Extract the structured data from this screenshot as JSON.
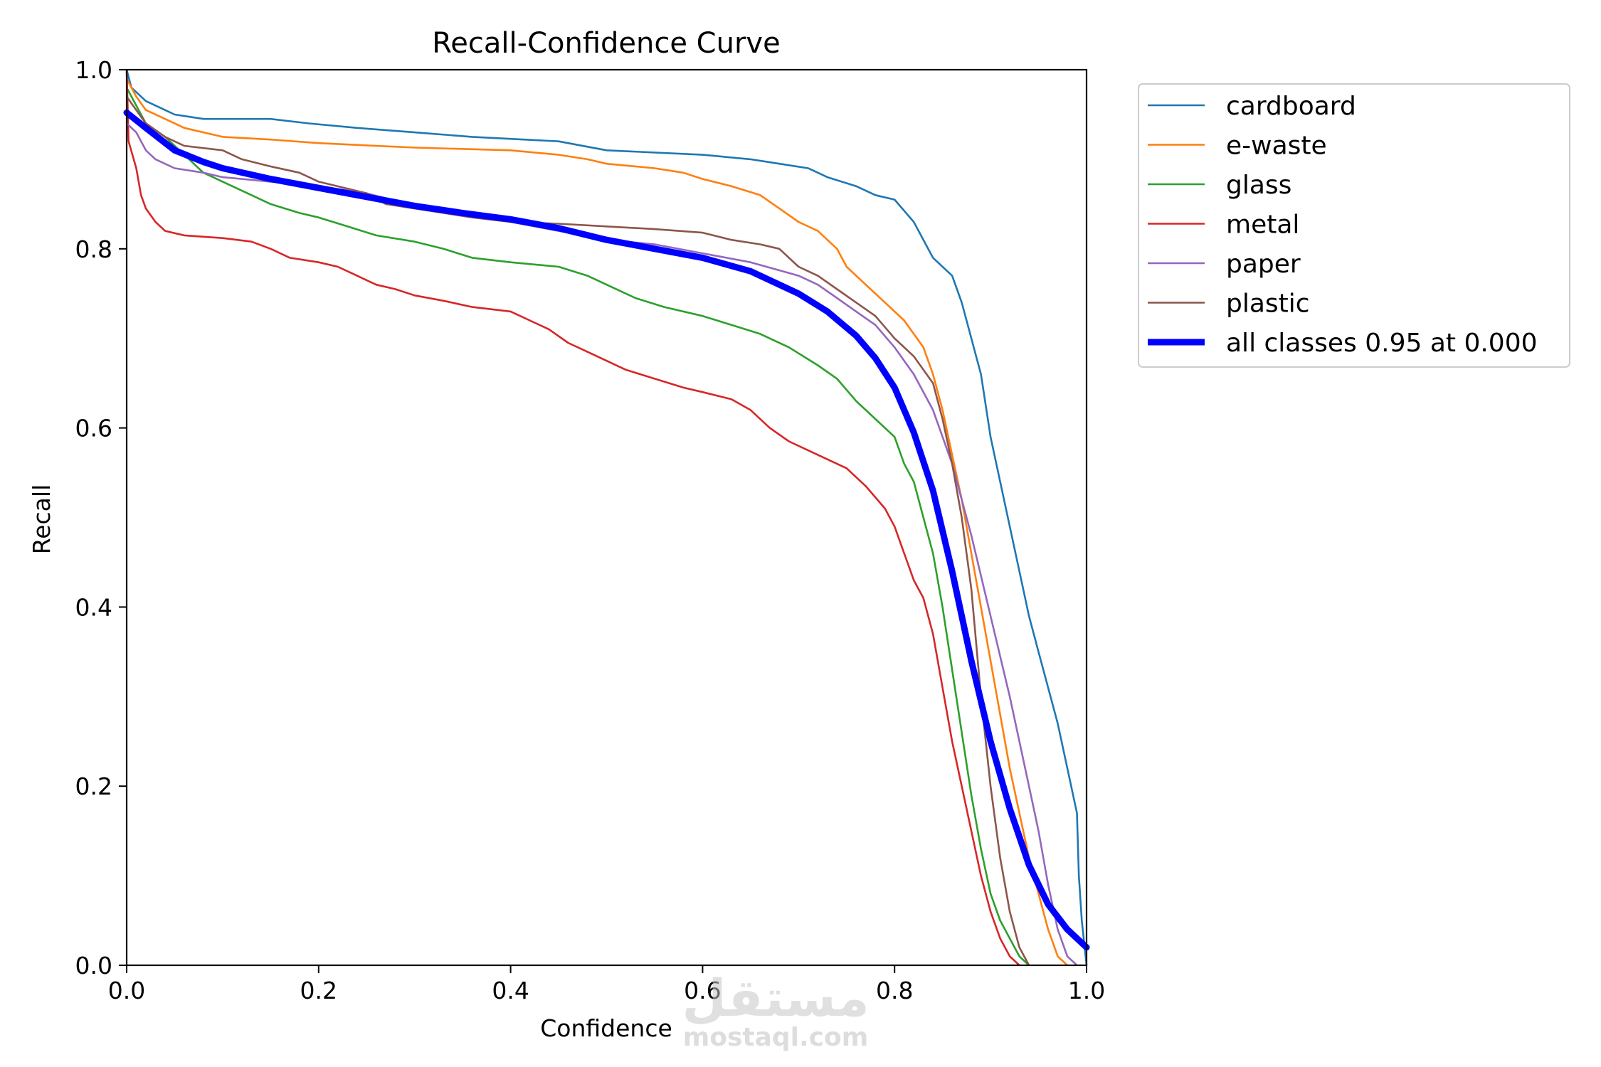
{
  "chart_data": {
    "type": "line",
    "title": "Recall-Confidence Curve",
    "xlabel": "Confidence",
    "ylabel": "Recall",
    "xlim": [
      0,
      1
    ],
    "ylim": [
      0,
      1
    ],
    "xticks": [
      0,
      0.2,
      0.4,
      0.6,
      0.8,
      1.0
    ],
    "xtick_labels": [
      "0.0",
      "0.2",
      "0.4",
      "0.6",
      "0.8",
      "1.0"
    ],
    "yticks": [
      0,
      0.2,
      0.4,
      0.6,
      0.8,
      1.0
    ],
    "ytick_labels": [
      "0.0",
      "0.2",
      "0.4",
      "0.6",
      "0.8",
      "1.0"
    ],
    "grid": false,
    "legend_position": "outside-right",
    "series": [
      {
        "name": "cardboard",
        "color": "#1f77b4",
        "width": "thin",
        "points": [
          [
            0,
            1.0
          ],
          [
            0.005,
            0.98
          ],
          [
            0.02,
            0.965
          ],
          [
            0.04,
            0.955
          ],
          [
            0.05,
            0.95
          ],
          [
            0.08,
            0.945
          ],
          [
            0.15,
            0.945
          ],
          [
            0.19,
            0.94
          ],
          [
            0.24,
            0.935
          ],
          [
            0.3,
            0.93
          ],
          [
            0.36,
            0.925
          ],
          [
            0.45,
            0.92
          ],
          [
            0.5,
            0.91
          ],
          [
            0.6,
            0.905
          ],
          [
            0.65,
            0.9
          ],
          [
            0.68,
            0.895
          ],
          [
            0.71,
            0.89
          ],
          [
            0.73,
            0.88
          ],
          [
            0.76,
            0.87
          ],
          [
            0.78,
            0.86
          ],
          [
            0.8,
            0.855
          ],
          [
            0.82,
            0.83
          ],
          [
            0.83,
            0.81
          ],
          [
            0.84,
            0.79
          ],
          [
            0.86,
            0.77
          ],
          [
            0.87,
            0.74
          ],
          [
            0.88,
            0.7
          ],
          [
            0.89,
            0.66
          ],
          [
            0.9,
            0.59
          ],
          [
            0.91,
            0.54
          ],
          [
            0.92,
            0.49
          ],
          [
            0.93,
            0.44
          ],
          [
            0.94,
            0.39
          ],
          [
            0.95,
            0.35
          ],
          [
            0.96,
            0.31
          ],
          [
            0.97,
            0.27
          ],
          [
            0.98,
            0.22
          ],
          [
            0.99,
            0.17
          ],
          [
            0.992,
            0.1
          ],
          [
            0.995,
            0.05
          ],
          [
            1.0,
            0.0
          ]
        ]
      },
      {
        "name": "e-waste",
        "color": "#ff7f0e",
        "width": "thin",
        "points": [
          [
            0,
            0.99
          ],
          [
            0.01,
            0.97
          ],
          [
            0.02,
            0.955
          ],
          [
            0.04,
            0.945
          ],
          [
            0.06,
            0.935
          ],
          [
            0.1,
            0.925
          ],
          [
            0.15,
            0.922
          ],
          [
            0.2,
            0.918
          ],
          [
            0.3,
            0.913
          ],
          [
            0.4,
            0.91
          ],
          [
            0.45,
            0.905
          ],
          [
            0.48,
            0.9
          ],
          [
            0.5,
            0.895
          ],
          [
            0.55,
            0.89
          ],
          [
            0.58,
            0.885
          ],
          [
            0.6,
            0.878
          ],
          [
            0.63,
            0.87
          ],
          [
            0.66,
            0.86
          ],
          [
            0.68,
            0.845
          ],
          [
            0.7,
            0.83
          ],
          [
            0.72,
            0.82
          ],
          [
            0.74,
            0.8
          ],
          [
            0.75,
            0.78
          ],
          [
            0.77,
            0.76
          ],
          [
            0.79,
            0.74
          ],
          [
            0.81,
            0.72
          ],
          [
            0.83,
            0.69
          ],
          [
            0.84,
            0.66
          ],
          [
            0.85,
            0.62
          ],
          [
            0.86,
            0.57
          ],
          [
            0.87,
            0.52
          ],
          [
            0.88,
            0.46
          ],
          [
            0.89,
            0.4
          ],
          [
            0.9,
            0.34
          ],
          [
            0.91,
            0.28
          ],
          [
            0.92,
            0.22
          ],
          [
            0.93,
            0.17
          ],
          [
            0.94,
            0.12
          ],
          [
            0.95,
            0.08
          ],
          [
            0.96,
            0.04
          ],
          [
            0.97,
            0.01
          ],
          [
            0.98,
            0.0
          ]
        ]
      },
      {
        "name": "glass",
        "color": "#2ca02c",
        "width": "thin",
        "points": [
          [
            0,
            0.98
          ],
          [
            0.01,
            0.96
          ],
          [
            0.02,
            0.94
          ],
          [
            0.04,
            0.925
          ],
          [
            0.06,
            0.905
          ],
          [
            0.08,
            0.885
          ],
          [
            0.1,
            0.875
          ],
          [
            0.13,
            0.86
          ],
          [
            0.15,
            0.85
          ],
          [
            0.18,
            0.84
          ],
          [
            0.2,
            0.835
          ],
          [
            0.23,
            0.825
          ],
          [
            0.26,
            0.815
          ],
          [
            0.3,
            0.808
          ],
          [
            0.33,
            0.8
          ],
          [
            0.36,
            0.79
          ],
          [
            0.4,
            0.785
          ],
          [
            0.45,
            0.78
          ],
          [
            0.48,
            0.77
          ],
          [
            0.5,
            0.76
          ],
          [
            0.53,
            0.745
          ],
          [
            0.56,
            0.735
          ],
          [
            0.6,
            0.725
          ],
          [
            0.63,
            0.715
          ],
          [
            0.66,
            0.705
          ],
          [
            0.69,
            0.69
          ],
          [
            0.72,
            0.67
          ],
          [
            0.74,
            0.655
          ],
          [
            0.76,
            0.63
          ],
          [
            0.78,
            0.61
          ],
          [
            0.8,
            0.59
          ],
          [
            0.81,
            0.56
          ],
          [
            0.82,
            0.54
          ],
          [
            0.83,
            0.5
          ],
          [
            0.84,
            0.46
          ],
          [
            0.85,
            0.4
          ],
          [
            0.86,
            0.33
          ],
          [
            0.87,
            0.26
          ],
          [
            0.88,
            0.19
          ],
          [
            0.89,
            0.13
          ],
          [
            0.9,
            0.08
          ],
          [
            0.91,
            0.05
          ],
          [
            0.92,
            0.03
          ],
          [
            0.93,
            0.01
          ],
          [
            0.94,
            0.0
          ]
        ]
      },
      {
        "name": "metal",
        "color": "#d62728",
        "width": "thin",
        "points": [
          [
            0,
            1.0
          ],
          [
            0.002,
            0.92
          ],
          [
            0.01,
            0.89
          ],
          [
            0.015,
            0.86
          ],
          [
            0.02,
            0.845
          ],
          [
            0.03,
            0.83
          ],
          [
            0.04,
            0.82
          ],
          [
            0.06,
            0.815
          ],
          [
            0.1,
            0.812
          ],
          [
            0.13,
            0.808
          ],
          [
            0.15,
            0.8
          ],
          [
            0.17,
            0.79
          ],
          [
            0.2,
            0.785
          ],
          [
            0.22,
            0.78
          ],
          [
            0.24,
            0.77
          ],
          [
            0.26,
            0.76
          ],
          [
            0.28,
            0.755
          ],
          [
            0.3,
            0.748
          ],
          [
            0.33,
            0.742
          ],
          [
            0.36,
            0.735
          ],
          [
            0.4,
            0.73
          ],
          [
            0.42,
            0.72
          ],
          [
            0.44,
            0.71
          ],
          [
            0.46,
            0.695
          ],
          [
            0.48,
            0.685
          ],
          [
            0.5,
            0.675
          ],
          [
            0.52,
            0.665
          ],
          [
            0.55,
            0.655
          ],
          [
            0.58,
            0.645
          ],
          [
            0.6,
            0.64
          ],
          [
            0.63,
            0.632
          ],
          [
            0.65,
            0.62
          ],
          [
            0.67,
            0.6
          ],
          [
            0.69,
            0.585
          ],
          [
            0.72,
            0.57
          ],
          [
            0.75,
            0.555
          ],
          [
            0.77,
            0.535
          ],
          [
            0.79,
            0.51
          ],
          [
            0.8,
            0.49
          ],
          [
            0.81,
            0.46
          ],
          [
            0.82,
            0.43
          ],
          [
            0.83,
            0.41
          ],
          [
            0.84,
            0.37
          ],
          [
            0.85,
            0.31
          ],
          [
            0.86,
            0.25
          ],
          [
            0.87,
            0.2
          ],
          [
            0.88,
            0.15
          ],
          [
            0.89,
            0.1
          ],
          [
            0.9,
            0.06
          ],
          [
            0.91,
            0.03
          ],
          [
            0.92,
            0.01
          ],
          [
            0.93,
            0.0
          ]
        ]
      },
      {
        "name": "paper",
        "color": "#9467bd",
        "width": "thin",
        "points": [
          [
            0,
            0.94
          ],
          [
            0.01,
            0.93
          ],
          [
            0.02,
            0.91
          ],
          [
            0.03,
            0.9
          ],
          [
            0.05,
            0.89
          ],
          [
            0.08,
            0.885
          ],
          [
            0.1,
            0.88
          ],
          [
            0.15,
            0.875
          ],
          [
            0.2,
            0.87
          ],
          [
            0.25,
            0.862
          ],
          [
            0.3,
            0.848
          ],
          [
            0.35,
            0.84
          ],
          [
            0.4,
            0.83
          ],
          [
            0.45,
            0.82
          ],
          [
            0.5,
            0.81
          ],
          [
            0.55,
            0.805
          ],
          [
            0.6,
            0.795
          ],
          [
            0.65,
            0.785
          ],
          [
            0.7,
            0.77
          ],
          [
            0.72,
            0.76
          ],
          [
            0.74,
            0.745
          ],
          [
            0.76,
            0.73
          ],
          [
            0.78,
            0.715
          ],
          [
            0.8,
            0.69
          ],
          [
            0.82,
            0.66
          ],
          [
            0.84,
            0.62
          ],
          [
            0.86,
            0.56
          ],
          [
            0.88,
            0.48
          ],
          [
            0.9,
            0.39
          ],
          [
            0.92,
            0.3
          ],
          [
            0.94,
            0.2
          ],
          [
            0.95,
            0.15
          ],
          [
            0.96,
            0.09
          ],
          [
            0.97,
            0.04
          ],
          [
            0.98,
            0.01
          ],
          [
            0.99,
            0.0
          ]
        ]
      },
      {
        "name": "plastic",
        "color": "#8c564b",
        "width": "thin",
        "points": [
          [
            0,
            0.97
          ],
          [
            0.01,
            0.955
          ],
          [
            0.02,
            0.94
          ],
          [
            0.04,
            0.925
          ],
          [
            0.06,
            0.915
          ],
          [
            0.1,
            0.91
          ],
          [
            0.12,
            0.9
          ],
          [
            0.15,
            0.892
          ],
          [
            0.18,
            0.885
          ],
          [
            0.2,
            0.875
          ],
          [
            0.25,
            0.862
          ],
          [
            0.27,
            0.85
          ],
          [
            0.3,
            0.845
          ],
          [
            0.33,
            0.84
          ],
          [
            0.36,
            0.835
          ],
          [
            0.4,
            0.83
          ],
          [
            0.45,
            0.828
          ],
          [
            0.5,
            0.825
          ],
          [
            0.55,
            0.822
          ],
          [
            0.6,
            0.818
          ],
          [
            0.63,
            0.81
          ],
          [
            0.66,
            0.805
          ],
          [
            0.68,
            0.8
          ],
          [
            0.7,
            0.78
          ],
          [
            0.72,
            0.77
          ],
          [
            0.74,
            0.755
          ],
          [
            0.76,
            0.74
          ],
          [
            0.78,
            0.725
          ],
          [
            0.8,
            0.7
          ],
          [
            0.82,
            0.68
          ],
          [
            0.84,
            0.65
          ],
          [
            0.85,
            0.61
          ],
          [
            0.86,
            0.56
          ],
          [
            0.87,
            0.5
          ],
          [
            0.88,
            0.42
          ],
          [
            0.89,
            0.3
          ],
          [
            0.9,
            0.2
          ],
          [
            0.91,
            0.12
          ],
          [
            0.92,
            0.06
          ],
          [
            0.93,
            0.02
          ],
          [
            0.94,
            0.0
          ]
        ]
      },
      {
        "name": "all classes 0.95 at 0.000",
        "color": "#0000ff",
        "width": "thick",
        "points": [
          [
            0,
            0.952
          ],
          [
            0.02,
            0.935
          ],
          [
            0.05,
            0.91
          ],
          [
            0.08,
            0.897
          ],
          [
            0.1,
            0.89
          ],
          [
            0.15,
            0.878
          ],
          [
            0.2,
            0.868
          ],
          [
            0.25,
            0.858
          ],
          [
            0.3,
            0.848
          ],
          [
            0.35,
            0.84
          ],
          [
            0.4,
            0.833
          ],
          [
            0.45,
            0.823
          ],
          [
            0.5,
            0.81
          ],
          [
            0.55,
            0.8
          ],
          [
            0.6,
            0.79
          ],
          [
            0.65,
            0.775
          ],
          [
            0.7,
            0.75
          ],
          [
            0.73,
            0.73
          ],
          [
            0.76,
            0.703
          ],
          [
            0.78,
            0.678
          ],
          [
            0.8,
            0.645
          ],
          [
            0.82,
            0.595
          ],
          [
            0.84,
            0.53
          ],
          [
            0.86,
            0.44
          ],
          [
            0.88,
            0.34
          ],
          [
            0.9,
            0.25
          ],
          [
            0.92,
            0.175
          ],
          [
            0.94,
            0.112
          ],
          [
            0.96,
            0.068
          ],
          [
            0.98,
            0.04
          ],
          [
            1.0,
            0.02
          ]
        ]
      }
    ]
  },
  "watermark": {
    "arabic": "مستقل",
    "latin": "mostaql.com"
  }
}
